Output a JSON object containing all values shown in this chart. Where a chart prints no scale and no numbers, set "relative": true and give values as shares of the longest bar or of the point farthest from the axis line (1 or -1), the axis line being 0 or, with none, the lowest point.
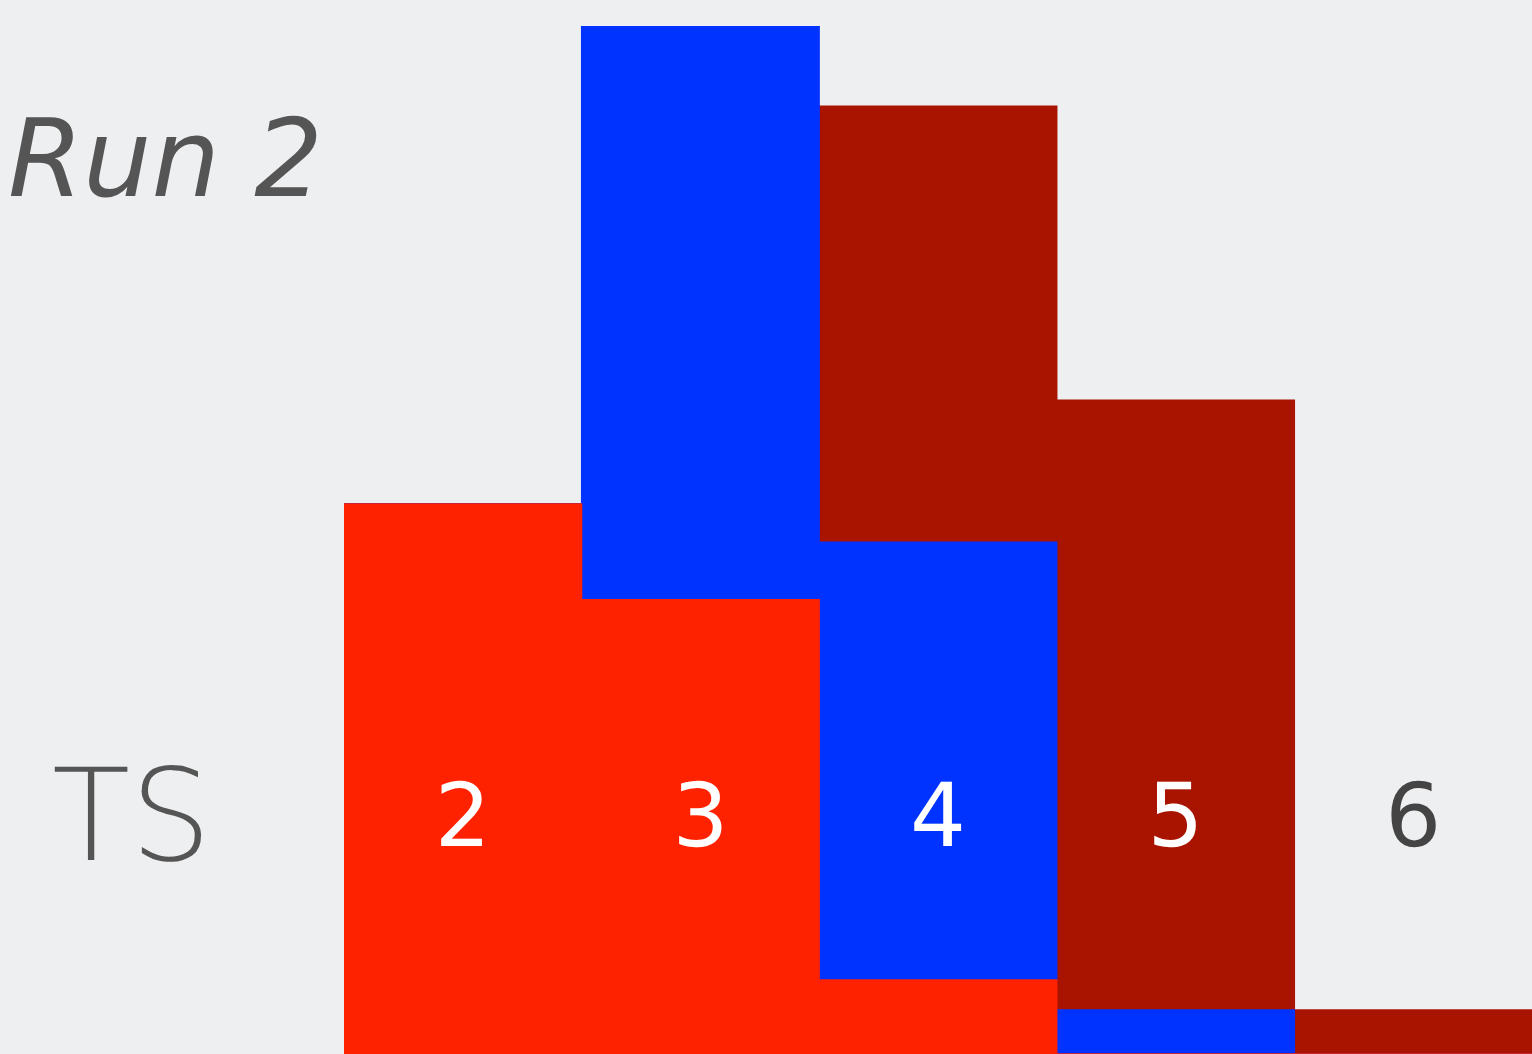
{
  "chart_data": {
    "type": "bar",
    "title": "Run 2",
    "xlabel": "TS",
    "categories": [
      "2",
      "3",
      "4",
      "5",
      "6"
    ],
    "stacked": true,
    "relative": true,
    "series": [
      {
        "color": "#ff2200",
        "values": [
          0.535,
          0.442,
          0.072,
          0,
          0
        ]
      },
      {
        "color": "#0033ff",
        "values": [
          0,
          0.558,
          0.426,
          0.043,
          0
        ]
      },
      {
        "color": "#a81400",
        "values": [
          0,
          0,
          0.424,
          0.593,
          0.043
        ]
      }
    ]
  }
}
